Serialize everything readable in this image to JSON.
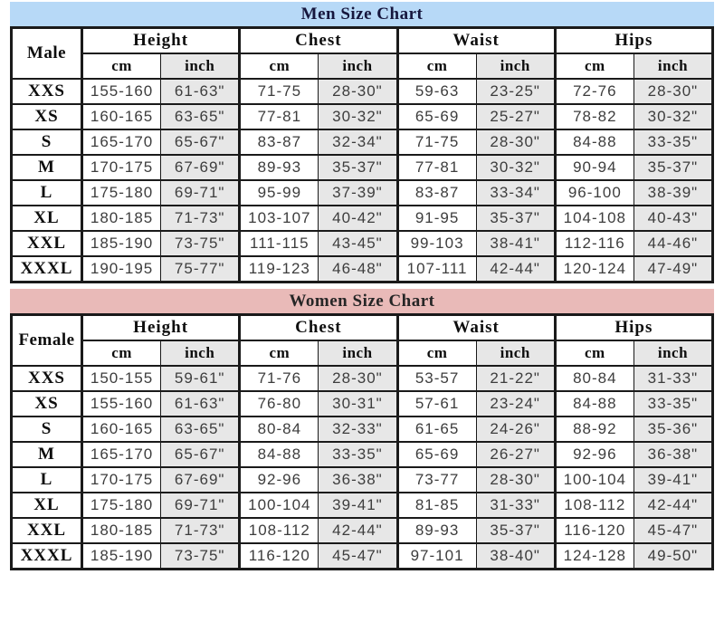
{
  "column_groups": [
    "Height",
    "Chest",
    "Waist",
    "Hips"
  ],
  "unit_labels": [
    "cm",
    "inch"
  ],
  "colors": {
    "men_header_bg": "#b7d9f7",
    "women_header_bg": "#e9bab8",
    "inch_column_bg": "#e7e7e7",
    "border": "#1a1a1a",
    "men_title_text": "#16163d",
    "women_title_text": "#262626",
    "data_text": "#3d3d3d"
  },
  "men_chart": {
    "title": "Men Size Chart",
    "row_label_header": "Male",
    "rows": [
      [
        "XXS",
        "155-160",
        "61-63\"",
        "71-75",
        "28-30\"",
        "59-63",
        "23-25\"",
        "72-76",
        "28-30\""
      ],
      [
        "XS",
        "160-165",
        "63-65\"",
        "77-81",
        "30-32\"",
        "65-69",
        "25-27\"",
        "78-82",
        "30-32\""
      ],
      [
        "S",
        "165-170",
        "65-67\"",
        "83-87",
        "32-34\"",
        "71-75",
        "28-30\"",
        "84-88",
        "33-35\""
      ],
      [
        "M",
        "170-175",
        "67-69\"",
        "89-93",
        "35-37\"",
        "77-81",
        "30-32\"",
        "90-94",
        "35-37\""
      ],
      [
        "L",
        "175-180",
        "69-71\"",
        "95-99",
        "37-39\"",
        "83-87",
        "33-34\"",
        "96-100",
        "38-39\""
      ],
      [
        "XL",
        "180-185",
        "71-73\"",
        "103-107",
        "40-42\"",
        "91-95",
        "35-37\"",
        "104-108",
        "40-43\""
      ],
      [
        "XXL",
        "185-190",
        "73-75\"",
        "111-115",
        "43-45\"",
        "99-103",
        "38-41\"",
        "112-116",
        "44-46\""
      ],
      [
        "XXXL",
        "190-195",
        "75-77\"",
        "119-123",
        "46-48\"",
        "107-111",
        "42-44\"",
        "120-124",
        "47-49\""
      ]
    ]
  },
  "women_chart": {
    "title": "Women Size Chart",
    "row_label_header": "Female",
    "rows": [
      [
        "XXS",
        "150-155",
        "59-61\"",
        "71-76",
        "28-30\"",
        "53-57",
        "21-22\"",
        "80-84",
        "31-33\""
      ],
      [
        "XS",
        "155-160",
        "61-63\"",
        "76-80",
        "30-31\"",
        "57-61",
        "23-24\"",
        "84-88",
        "33-35\""
      ],
      [
        "S",
        "160-165",
        "63-65\"",
        "80-84",
        "32-33\"",
        "61-65",
        "24-26\"",
        "88-92",
        "35-36\""
      ],
      [
        "M",
        "165-170",
        "65-67\"",
        "84-88",
        "33-35\"",
        "65-69",
        "26-27\"",
        "92-96",
        "36-38\""
      ],
      [
        "L",
        "170-175",
        "67-69\"",
        "92-96",
        "36-38\"",
        "73-77",
        "28-30\"",
        "100-104",
        "39-41\""
      ],
      [
        "XL",
        "175-180",
        "69-71\"",
        "100-104",
        "39-41\"",
        "81-85",
        "31-33\"",
        "108-112",
        "42-44\""
      ],
      [
        "XXL",
        "180-185",
        "71-73\"",
        "108-112",
        "42-44\"",
        "89-93",
        "35-37\"",
        "116-120",
        "45-47\""
      ],
      [
        "XXXL",
        "185-190",
        "73-75\"",
        "116-120",
        "45-47\"",
        "97-101",
        "38-40\"",
        "124-128",
        "49-50\""
      ]
    ]
  }
}
